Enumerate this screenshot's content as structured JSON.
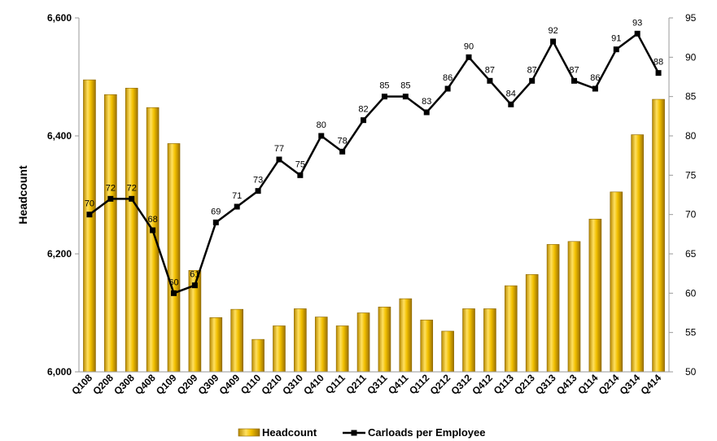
{
  "chart_data": {
    "type": "bar+line",
    "categories": [
      "Q108",
      "Q208",
      "Q308",
      "Q408",
      "Q109",
      "Q209",
      "Q309",
      "Q409",
      "Q110",
      "Q210",
      "Q310",
      "Q410",
      "Q111",
      "Q211",
      "Q311",
      "Q411",
      "Q112",
      "Q212",
      "Q312",
      "Q412",
      "Q113",
      "Q213",
      "Q313",
      "Q413",
      "Q114",
      "Q214",
      "Q314",
      "Q414"
    ],
    "series": [
      {
        "name": "Headcount",
        "type": "bar",
        "axis": "left",
        "color": "#E8B000",
        "values": [
          6495,
          6470,
          6481,
          6448,
          6387,
          6172,
          6092,
          6106,
          6055,
          6078,
          6107,
          6093,
          6078,
          6100,
          6110,
          6124,
          6088,
          6069,
          6107,
          6107,
          6146,
          6165,
          6216,
          6221,
          6259,
          6305,
          6402,
          6462
        ]
      },
      {
        "name": "Carloads per Employee",
        "type": "line",
        "axis": "right",
        "color": "#000000",
        "values": [
          70,
          72,
          72,
          68,
          60,
          61,
          69,
          71,
          73,
          77,
          75,
          80,
          78,
          82,
          85,
          85,
          83,
          86,
          90,
          87,
          84,
          87,
          92,
          87,
          86,
          91,
          93,
          88
        ]
      }
    ],
    "ylabel": "Headcount",
    "ylim_left": [
      6000,
      6600
    ],
    "yticks_left": [
      "6,000",
      "6,200",
      "6,400",
      "6,600"
    ],
    "ylim_right": [
      50,
      95
    ],
    "yticks_right": [
      "50",
      "55",
      "60",
      "65",
      "70",
      "75",
      "80",
      "85",
      "90",
      "95"
    ],
    "legend_position": "bottom",
    "grid": false
  }
}
